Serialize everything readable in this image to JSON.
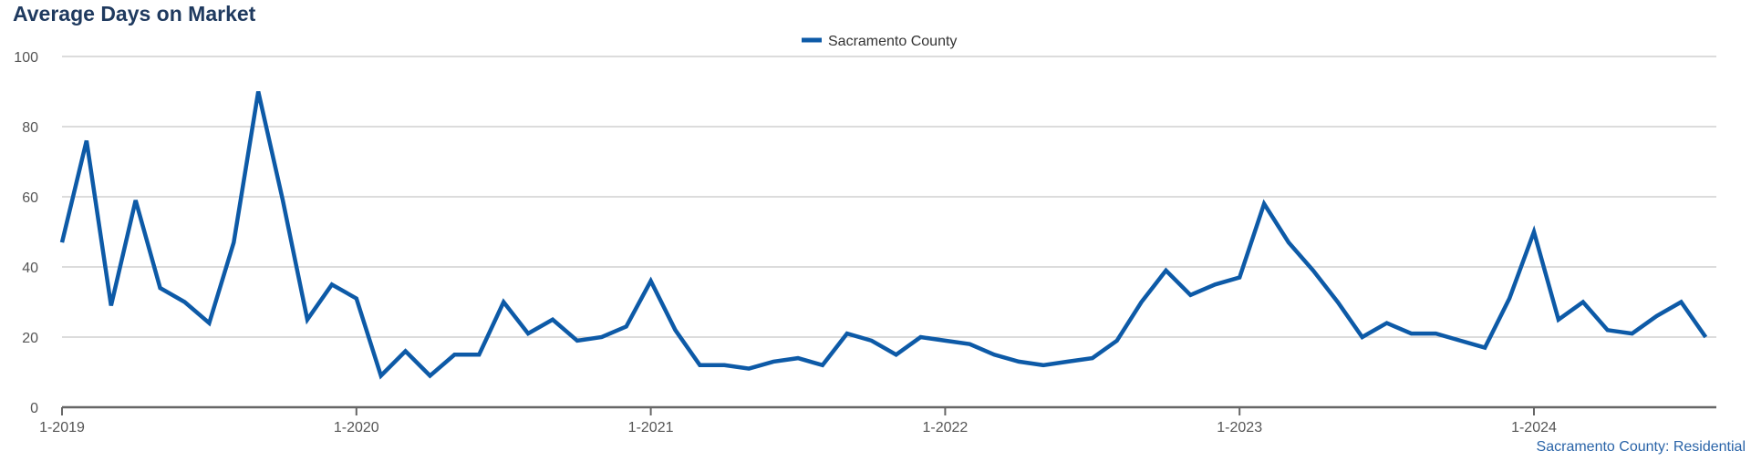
{
  "title": "Average Days on Market",
  "footer": "Sacramento County: Residential",
  "chart_data": {
    "type": "line",
    "title": "Average Days on Market",
    "xlabel": "",
    "ylabel": "",
    "ylim": [
      0,
      100
    ],
    "yticks": [
      0,
      20,
      40,
      60,
      80,
      100
    ],
    "xtick_labels": [
      "1-2019",
      "1-2020",
      "1-2021",
      "1-2022",
      "1-2023",
      "1-2024"
    ],
    "xtick_month_index": [
      0,
      12,
      24,
      36,
      48,
      60
    ],
    "grid": true,
    "legend_position": "top-center",
    "colors": {
      "series": "#0d5aa7",
      "grid": "#c8c8c8",
      "axis": "#666666"
    },
    "series": [
      {
        "name": "Sacramento County",
        "x_start": "1-2019",
        "values": [
          47,
          76,
          29,
          59,
          34,
          30,
          24,
          47,
          90,
          59,
          25,
          35,
          31,
          9,
          16,
          9,
          15,
          15,
          30,
          21,
          25,
          19,
          20,
          23,
          36,
          22,
          12,
          12,
          11,
          13,
          14,
          12,
          21,
          19,
          15,
          20,
          19,
          18,
          15,
          13,
          12,
          13,
          14,
          19,
          30,
          39,
          32,
          35,
          37,
          58,
          47,
          39,
          30,
          20,
          24,
          21,
          21,
          19,
          17,
          31,
          50,
          25,
          30,
          22,
          21,
          26,
          30,
          20
        ]
      }
    ]
  }
}
